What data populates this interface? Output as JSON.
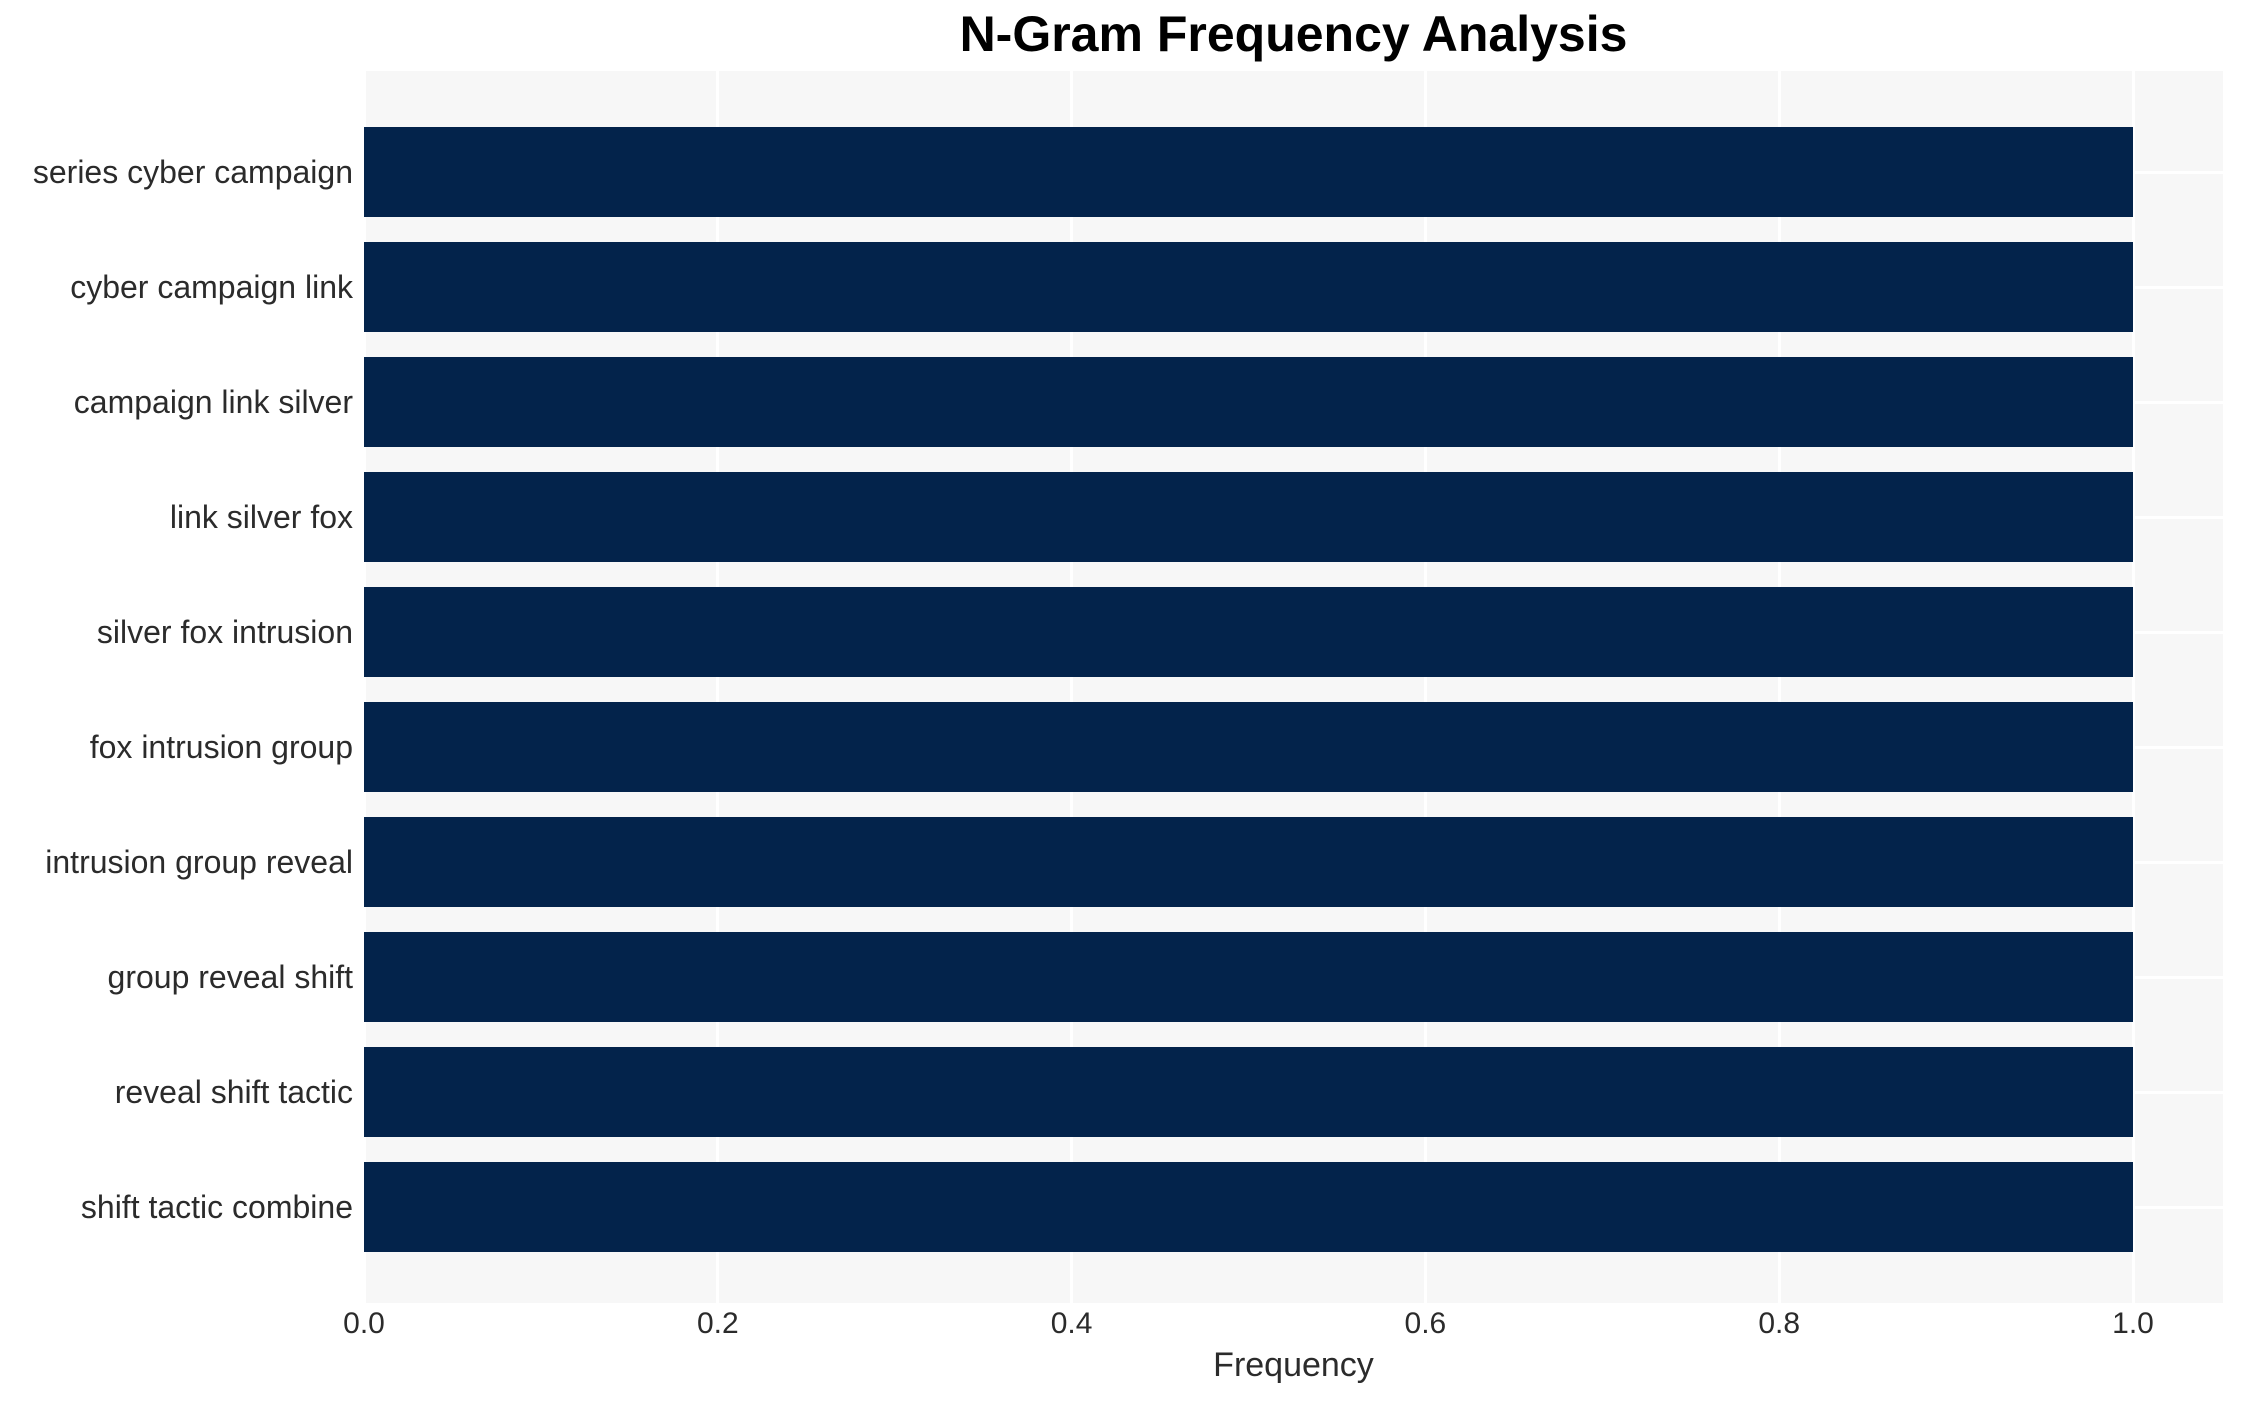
{
  "chart_data": {
    "type": "bar",
    "orientation": "horizontal",
    "title": "N-Gram Frequency Analysis",
    "xlabel": "Frequency",
    "ylabel": "",
    "categories": [
      "series cyber campaign",
      "cyber campaign link",
      "campaign link silver",
      "link silver fox",
      "silver fox intrusion",
      "fox intrusion group",
      "intrusion group reveal",
      "group reveal shift",
      "reveal shift tactic",
      "shift tactic combine"
    ],
    "values": [
      1.0,
      1.0,
      1.0,
      1.0,
      1.0,
      1.0,
      1.0,
      1.0,
      1.0,
      1.0
    ],
    "xticks": [
      0.0,
      0.2,
      0.4,
      0.6,
      0.8,
      1.0
    ],
    "xtick_labels": [
      "0.0",
      "0.2",
      "0.4",
      "0.6",
      "0.8",
      "1.0"
    ],
    "xlim": [
      0,
      1.05
    ],
    "grid": true,
    "legend_position": "none",
    "colors": {
      "bar": "#03234B",
      "plot_background": "#F7F7F7",
      "grid_line": "#FFFFFF",
      "figure_background": "#FFFFFF",
      "title_text": "#000000",
      "axis_text": "#2B2B2B"
    }
  }
}
